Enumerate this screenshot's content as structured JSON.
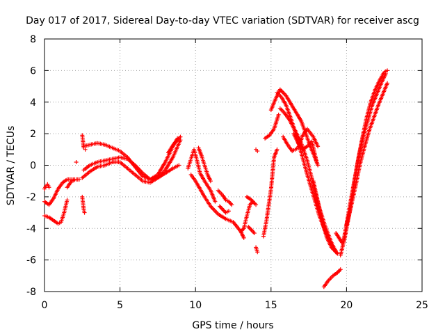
{
  "chart_data": {
    "type": "scatter",
    "title": "Day 017 of 2017, Sidereal Day-to-day VTEC variation (SDTVAR) for receiver ascg",
    "xlabel": "GPS time / hours",
    "ylabel": "SDTVAR / TECUs",
    "xlim": [
      0,
      25
    ],
    "ylim": [
      -8,
      8
    ],
    "xticks": [
      0,
      5,
      10,
      15,
      20,
      25
    ],
    "yticks": [
      -8,
      -6,
      -4,
      -2,
      0,
      2,
      4,
      6,
      8
    ],
    "xtick_labels": [
      "0",
      "5",
      "10",
      "15",
      "20",
      "25"
    ],
    "ytick_labels": [
      "-8",
      "-6",
      "-4",
      "-2",
      "0",
      "2",
      "4",
      "6",
      "8"
    ],
    "grid": true,
    "marker": "plus",
    "color": "#ff0000",
    "series": [
      {
        "name": "ascg",
        "tracks": [
          {
            "x": [
              0,
              0.3,
              0.6,
              0.9,
              1.2,
              1.5,
              1.8,
              2.0
            ],
            "y": [
              -2.3,
              -2.5,
              -2.1,
              -1.5,
              -1.1,
              -0.9,
              -0.9,
              -0.9
            ]
          },
          {
            "x": [
              0,
              0.1,
              0.2,
              0.3
            ],
            "y": [
              -1.5,
              -1.3,
              -1.2,
              -1.4
            ]
          },
          {
            "x": [
              0,
              0.3,
              0.6,
              0.9,
              1.1,
              1.3,
              1.5
            ],
            "y": [
              -3.2,
              -3.3,
              -3.5,
              -3.7,
              -3.6,
              -3.0,
              -2.2
            ]
          },
          {
            "x": [
              1.5,
              1.8,
              2.1,
              2.3
            ],
            "y": [
              -1.4,
              -1.0,
              -0.9,
              -0.9
            ]
          },
          {
            "x": [
              2.1
            ],
            "y": [
              0.2
            ]
          },
          {
            "x": [
              2.5,
              2.55,
              2.6,
              2.65
            ],
            "y": [
              -2.0,
              -2.4,
              -2.8,
              -3.0
            ]
          },
          {
            "x": [
              2.5,
              2.55,
              2.6,
              2.7
            ],
            "y": [
              1.9,
              1.5,
              1.1,
              1.0
            ]
          },
          {
            "x": [
              2.6,
              3.0,
              3.5,
              4.0,
              4.5,
              5.0,
              5.5,
              6.0,
              6.5,
              7.0,
              7.5,
              8.0,
              8.5,
              8.8
            ],
            "y": [
              1.2,
              1.3,
              1.4,
              1.3,
              1.1,
              0.9,
              0.5,
              -0.1,
              -0.7,
              -0.9,
              -0.6,
              0.2,
              1.2,
              1.7
            ]
          },
          {
            "x": [
              2.5,
              3.0,
              3.5,
              4.0,
              4.5,
              5.0,
              5.5,
              6.0,
              6.5,
              7.0,
              7.5,
              8.0,
              8.5,
              9.0
            ],
            "y": [
              -0.8,
              -0.4,
              -0.1,
              0.0,
              0.2,
              0.2,
              -0.2,
              -0.6,
              -1.0,
              -1.1,
              -0.8,
              -0.3,
              0.5,
              1.6
            ]
          },
          {
            "x": [
              2.6,
              3.0,
              3.5,
              4.0,
              4.5,
              5.0,
              5.5,
              6.0,
              6.5,
              7.0,
              7.5,
              8.0,
              8.5,
              8.9
            ],
            "y": [
              -0.3,
              0.0,
              0.2,
              0.3,
              0.4,
              0.5,
              0.4,
              0.0,
              -0.5,
              -0.9,
              -0.8,
              -0.5,
              -0.2,
              0.0
            ]
          },
          {
            "x": [
              8.2,
              8.4,
              8.6,
              8.8,
              9.0
            ],
            "y": [
              0.8,
              1.1,
              1.4,
              1.6,
              1.8
            ]
          },
          {
            "x": [
              9.5,
              9.7,
              9.9,
              10.1,
              10.3,
              10.6,
              11.0,
              11.3
            ],
            "y": [
              -0.2,
              0.4,
              1.0,
              0.3,
              -0.5,
              -1.0,
              -1.6,
              -2.3
            ]
          },
          {
            "x": [
              9.7,
              10.0,
              10.3,
              10.6,
              11.0,
              11.5,
              12.0,
              12.5,
              13.0,
              13.2
            ],
            "y": [
              -0.6,
              -1.0,
              -1.5,
              -2.0,
              -2.6,
              -3.1,
              -3.4,
              -3.6,
              -4.2,
              -4.6
            ]
          },
          {
            "x": [
              10.2,
              10.4,
              10.6,
              10.8,
              11.0
            ],
            "y": [
              1.1,
              0.6,
              0.0,
              -0.6,
              -1.0
            ]
          },
          {
            "x": [
              11.5,
              11.8,
              12.0,
              12.2,
              12.4
            ],
            "y": [
              -1.6,
              -1.9,
              -2.2,
              -2.3,
              -2.5
            ]
          },
          {
            "x": [
              11.6,
              11.8,
              12.0,
              12.2
            ],
            "y": [
              -2.6,
              -2.8,
              -3.0,
              -2.9
            ]
          },
          {
            "x": [
              13.0,
              13.2,
              13.4,
              13.6,
              13.8
            ],
            "y": [
              -4.2,
              -4.0,
              -3.2,
              -2.5,
              -2.3
            ]
          },
          {
            "x": [
              13.4,
              13.7,
              14.0
            ],
            "y": [
              -2.0,
              -2.2,
              -2.5
            ]
          },
          {
            "x": [
              13.5,
              13.7,
              13.9
            ],
            "y": [
              -3.9,
              -4.1,
              -4.3
            ]
          },
          {
            "x": [
              14.0,
              14.1
            ],
            "y": [
              -5.2,
              -5.5
            ]
          },
          {
            "x": [
              14.0,
              14.1
            ],
            "y": [
              1.0,
              0.9
            ]
          },
          {
            "x": [
              14.5,
              14.7,
              15.0,
              15.2,
              15.4
            ],
            "y": [
              -4.5,
              -3.5,
              -1.5,
              0.5,
              1.0
            ]
          },
          {
            "x": [
              14.6,
              14.9,
              15.2,
              15.5
            ],
            "y": [
              1.7,
              1.9,
              2.3,
              3.2
            ]
          },
          {
            "x": [
              15.0,
              15.3,
              15.6,
              16.0,
              16.5,
              17.0,
              17.3,
              17.6,
              17.9,
              18.1
            ],
            "y": [
              3.5,
              4.2,
              4.8,
              4.4,
              3.6,
              2.8,
              2.0,
              1.2,
              0.5,
              0.0
            ]
          },
          {
            "x": [
              15.4,
              15.7,
              16.0,
              16.3,
              16.6,
              17.0,
              17.4,
              17.8,
              18.2,
              18.6,
              19.0,
              19.4
            ],
            "y": [
              4.6,
              4.3,
              3.8,
              3.0,
              2.1,
              0.8,
              -0.6,
              -1.9,
              -3.2,
              -4.2,
              -5.0,
              -5.6
            ]
          },
          {
            "x": [
              15.6,
              15.9,
              16.2,
              16.6,
              17.0,
              17.4,
              17.8,
              18.2,
              18.6,
              19.0,
              19.3
            ],
            "y": [
              3.6,
              3.3,
              2.9,
              2.2,
              1.4,
              0.3,
              -1.2,
              -2.7,
              -3.9,
              -4.9,
              -5.5
            ]
          },
          {
            "x": [
              15.8,
              16.1,
              16.4,
              16.8,
              17.1,
              17.4,
              17.8,
              18.1
            ],
            "y": [
              1.8,
              1.3,
              0.9,
              1.1,
              1.9,
              2.3,
              1.8,
              1.2
            ]
          },
          {
            "x": [
              16.5,
              16.8,
              17.1,
              17.4,
              17.7,
              18.0
            ],
            "y": [
              2.0,
              1.4,
              1.0,
              1.2,
              1.5,
              0.3
            ]
          },
          {
            "x": [
              17.8,
              18.1,
              18.4,
              18.7,
              19.0,
              19.4
            ],
            "y": [
              -1.0,
              -2.3,
              -3.6,
              -4.6,
              -5.2,
              -5.6
            ]
          },
          {
            "x": [
              18.5,
              18.8,
              19.1,
              19.4,
              19.6
            ],
            "y": [
              -7.7,
              -7.3,
              -7.0,
              -6.8,
              -6.6
            ]
          },
          {
            "x": [
              19.3,
              19.5,
              19.7
            ],
            "y": [
              -4.3,
              -4.6,
              -4.9
            ]
          },
          {
            "x": [
              19.6,
              19.9,
              20.2,
              20.5,
              20.8,
              21.1,
              21.4,
              21.7,
              22.0,
              22.3,
              22.6
            ],
            "y": [
              -5.7,
              -4.5,
              -3.0,
              -1.2,
              0.5,
              1.8,
              2.8,
              3.8,
              4.5,
              5.2,
              5.8
            ]
          },
          {
            "x": [
              19.8,
              20.1,
              20.4,
              20.7,
              21.0,
              21.3,
              21.6,
              21.9,
              22.2,
              22.5,
              22.7
            ],
            "y": [
              -4.8,
              -3.2,
              -1.6,
              0.0,
              1.5,
              2.9,
              4.0,
              4.8,
              5.4,
              5.9,
              6.0
            ]
          },
          {
            "x": [
              20.0,
              20.3,
              20.6,
              20.9,
              21.2,
              21.5,
              21.8,
              22.1,
              22.4,
              22.7
            ],
            "y": [
              -3.8,
              -2.6,
              -1.3,
              0.1,
              1.2,
              2.2,
              3.0,
              3.8,
              4.5,
              5.2
            ]
          }
        ]
      }
    ]
  }
}
